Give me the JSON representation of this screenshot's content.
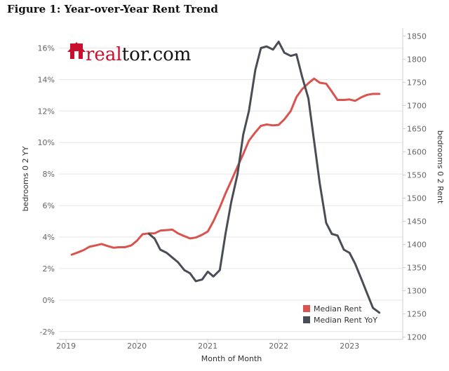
{
  "figure_title": "Figure 1: Year-over-Year Rent Trend",
  "logo": {
    "text_part1": "real",
    "text_part2": "tor.com",
    "color": "#c8102e",
    "icon_name": "realtor-house-icon"
  },
  "colors": {
    "median_rent": "#d9534f",
    "median_rent_yoy": "#4a4d55",
    "gridline": "#e6e6e6",
    "axis": "#cccccc"
  },
  "chart_data": {
    "type": "line",
    "xlabel": "Month of Month",
    "ylabel_left": "bedrooms 0 2 YY",
    "ylabel_right": "bedrooms 0 2 Rent",
    "xlim": [
      2018.9,
      2023.75
    ],
    "ylim_left": [
      -0.025,
      0.17
    ],
    "ylim_right": [
      1195,
      1858
    ],
    "x_ticks": [
      2019,
      2020,
      2021,
      2022,
      2023
    ],
    "y_ticks_left": [
      "-2%",
      "0%",
      "2%",
      "4%",
      "6%",
      "8%",
      "10%",
      "12%",
      "14%",
      "16%"
    ],
    "y_ticks_left_values": [
      -0.02,
      0,
      0.02,
      0.04,
      0.06,
      0.08,
      0.1,
      0.12,
      0.14,
      0.16
    ],
    "y_ticks_right": [
      1200,
      1250,
      1300,
      1350,
      1400,
      1450,
      1500,
      1550,
      1600,
      1650,
      1700,
      1750,
      1800,
      1850
    ],
    "legend_position": "bottom-right",
    "series": [
      {
        "name": "Median Rent",
        "axis": "right",
        "x": [
          2019.08,
          2019.17,
          2019.25,
          2019.33,
          2019.42,
          2019.5,
          2019.58,
          2019.67,
          2019.75,
          2019.83,
          2019.92,
          2020.0,
          2020.08,
          2020.17,
          2020.25,
          2020.33,
          2020.42,
          2020.5,
          2020.58,
          2020.67,
          2020.75,
          2020.83,
          2020.92,
          2021.0,
          2021.08,
          2021.17,
          2021.25,
          2021.33,
          2021.42,
          2021.5,
          2021.58,
          2021.67,
          2021.75,
          2021.83,
          2021.92,
          2022.0,
          2022.08,
          2022.17,
          2022.25,
          2022.33,
          2022.42,
          2022.5,
          2022.58,
          2022.67,
          2022.75,
          2022.83,
          2022.92,
          2023.0,
          2023.08,
          2023.17,
          2023.25,
          2023.33,
          2023.42
        ],
        "values": [
          1378,
          1383,
          1388,
          1395,
          1398,
          1401,
          1397,
          1393,
          1394,
          1394,
          1398,
          1408,
          1422,
          1424,
          1424,
          1430,
          1431,
          1432,
          1424,
          1418,
          1413,
          1415,
          1421,
          1428,
          1450,
          1480,
          1510,
          1537,
          1568,
          1595,
          1624,
          1642,
          1656,
          1659,
          1657,
          1658,
          1670,
          1688,
          1718,
          1735,
          1748,
          1758,
          1749,
          1747,
          1730,
          1712,
          1712,
          1713,
          1710,
          1718,
          1723,
          1725,
          1725
        ]
      },
      {
        "name": "Median Rent YoY",
        "axis": "left",
        "x": [
          2020.17,
          2020.25,
          2020.33,
          2020.42,
          2020.5,
          2020.58,
          2020.67,
          2020.75,
          2020.83,
          2020.92,
          2021.0,
          2021.08,
          2021.17,
          2021.25,
          2021.33,
          2021.42,
          2021.5,
          2021.58,
          2021.67,
          2021.75,
          2021.83,
          2021.92,
          2022.0,
          2022.08,
          2022.17,
          2022.25,
          2022.33,
          2022.42,
          2022.5,
          2022.58,
          2022.67,
          2022.75,
          2022.83,
          2022.92,
          2023.0,
          2023.08,
          2023.17,
          2023.25,
          2023.33,
          2023.42
        ],
        "values": [
          0.042,
          0.039,
          0.032,
          0.03,
          0.027,
          0.024,
          0.019,
          0.017,
          0.012,
          0.013,
          0.018,
          0.015,
          0.019,
          0.042,
          0.062,
          0.08,
          0.105,
          0.12,
          0.146,
          0.16,
          0.161,
          0.159,
          0.164,
          0.157,
          0.155,
          0.156,
          0.142,
          0.128,
          0.101,
          0.074,
          0.049,
          0.042,
          0.041,
          0.032,
          0.03,
          0.023,
          0.013,
          0.004,
          -0.005,
          -0.008
        ]
      }
    ]
  }
}
